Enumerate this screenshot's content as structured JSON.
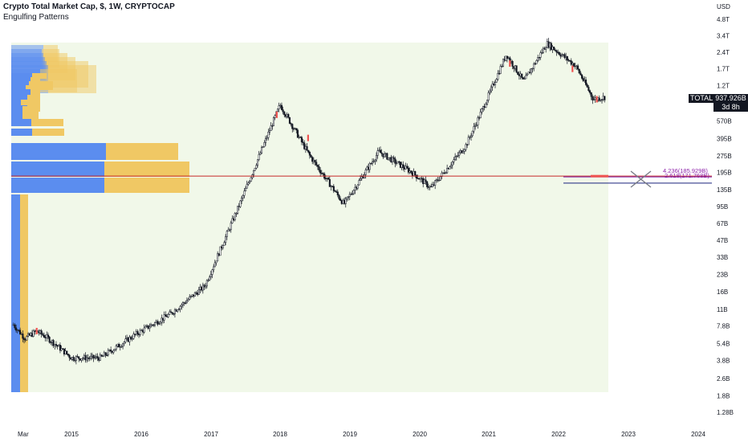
{
  "header": {
    "title": "Crypto Total Market Cap, $, 1W, CRYPTOCAP",
    "indicator": "Engulfing Patterns"
  },
  "price_axis": {
    "currency": "USD",
    "ticks": [
      "4.8T",
      "3.4T",
      "2.4T",
      "1.7T",
      "1.2T",
      "570B",
      "395B",
      "275B",
      "195B",
      "135B",
      "95B",
      "67B",
      "47B",
      "33B",
      "23B",
      "16B",
      "11B",
      "7.8B",
      "5.4B",
      "3.8B",
      "2.6B",
      "1.8B",
      "1.28B"
    ]
  },
  "time_axis": {
    "ticks": [
      "Mar",
      "2015",
      "2016",
      "2017",
      "2018",
      "2019",
      "2020",
      "2021",
      "2022",
      "2023",
      "2024"
    ]
  },
  "current": {
    "symbol": "TOTAL",
    "price": "937.926B",
    "countdown": "3d 8h"
  },
  "fib_labels": {
    "upper": "4.236(185.929B)",
    "lower": "2.618(171.768B)"
  },
  "colors": {
    "up_candle": "#131722",
    "down_candle": "#131722",
    "engulf_bear": "#ef5350",
    "engulf_bull": "#26a69a",
    "profile_blue": "#5b8def",
    "profile_yellow": "#f0c864",
    "value_area_bg": "#f1f8e9",
    "red_line": "#c62828",
    "purple_line": "#7b1fa2",
    "navy_line": "#1a237e"
  },
  "chart_data": {
    "type": "candlestick",
    "title": "Crypto Total Market Cap, $, 1W, CRYPTOCAP",
    "yscale": "log",
    "ylabel": "USD",
    "ylim": [
      "1.2B",
      "6T"
    ],
    "weekly_close_path": [
      {
        "date": "2014-03",
        "value": "8B"
      },
      {
        "date": "2014-05",
        "value": "6B"
      },
      {
        "date": "2014-07",
        "value": "7B"
      },
      {
        "date": "2014-09",
        "value": "6B"
      },
      {
        "date": "2015-01",
        "value": "4B"
      },
      {
        "date": "2015-06",
        "value": "4B"
      },
      {
        "date": "2015-12",
        "value": "6.5B"
      },
      {
        "date": "2016-06",
        "value": "10B"
      },
      {
        "date": "2016-12",
        "value": "18B"
      },
      {
        "date": "2017-06",
        "value": "100B"
      },
      {
        "date": "2017-12",
        "value": "600B"
      },
      {
        "date": "2018-01",
        "value": "800B"
      },
      {
        "date": "2018-06",
        "value": "280B"
      },
      {
        "date": "2018-12",
        "value": "100B"
      },
      {
        "date": "2019-06",
        "value": "300B"
      },
      {
        "date": "2019-12",
        "value": "190B"
      },
      {
        "date": "2020-03",
        "value": "140B"
      },
      {
        "date": "2020-09",
        "value": "340B"
      },
      {
        "date": "2020-12",
        "value": "750B"
      },
      {
        "date": "2021-04",
        "value": "2.3T"
      },
      {
        "date": "2021-07",
        "value": "1.3T"
      },
      {
        "date": "2021-11",
        "value": "2.9T"
      },
      {
        "date": "2022-04",
        "value": "1.8T"
      },
      {
        "date": "2022-07",
        "value": "900B"
      },
      {
        "date": "2022-09",
        "value": "938B"
      }
    ],
    "last_value": "937.926B",
    "fibonacci": [
      {
        "level": "4.236",
        "value": "185.929B"
      },
      {
        "level": "2.618",
        "value": "171.768B"
      }
    ],
    "grid": false
  }
}
